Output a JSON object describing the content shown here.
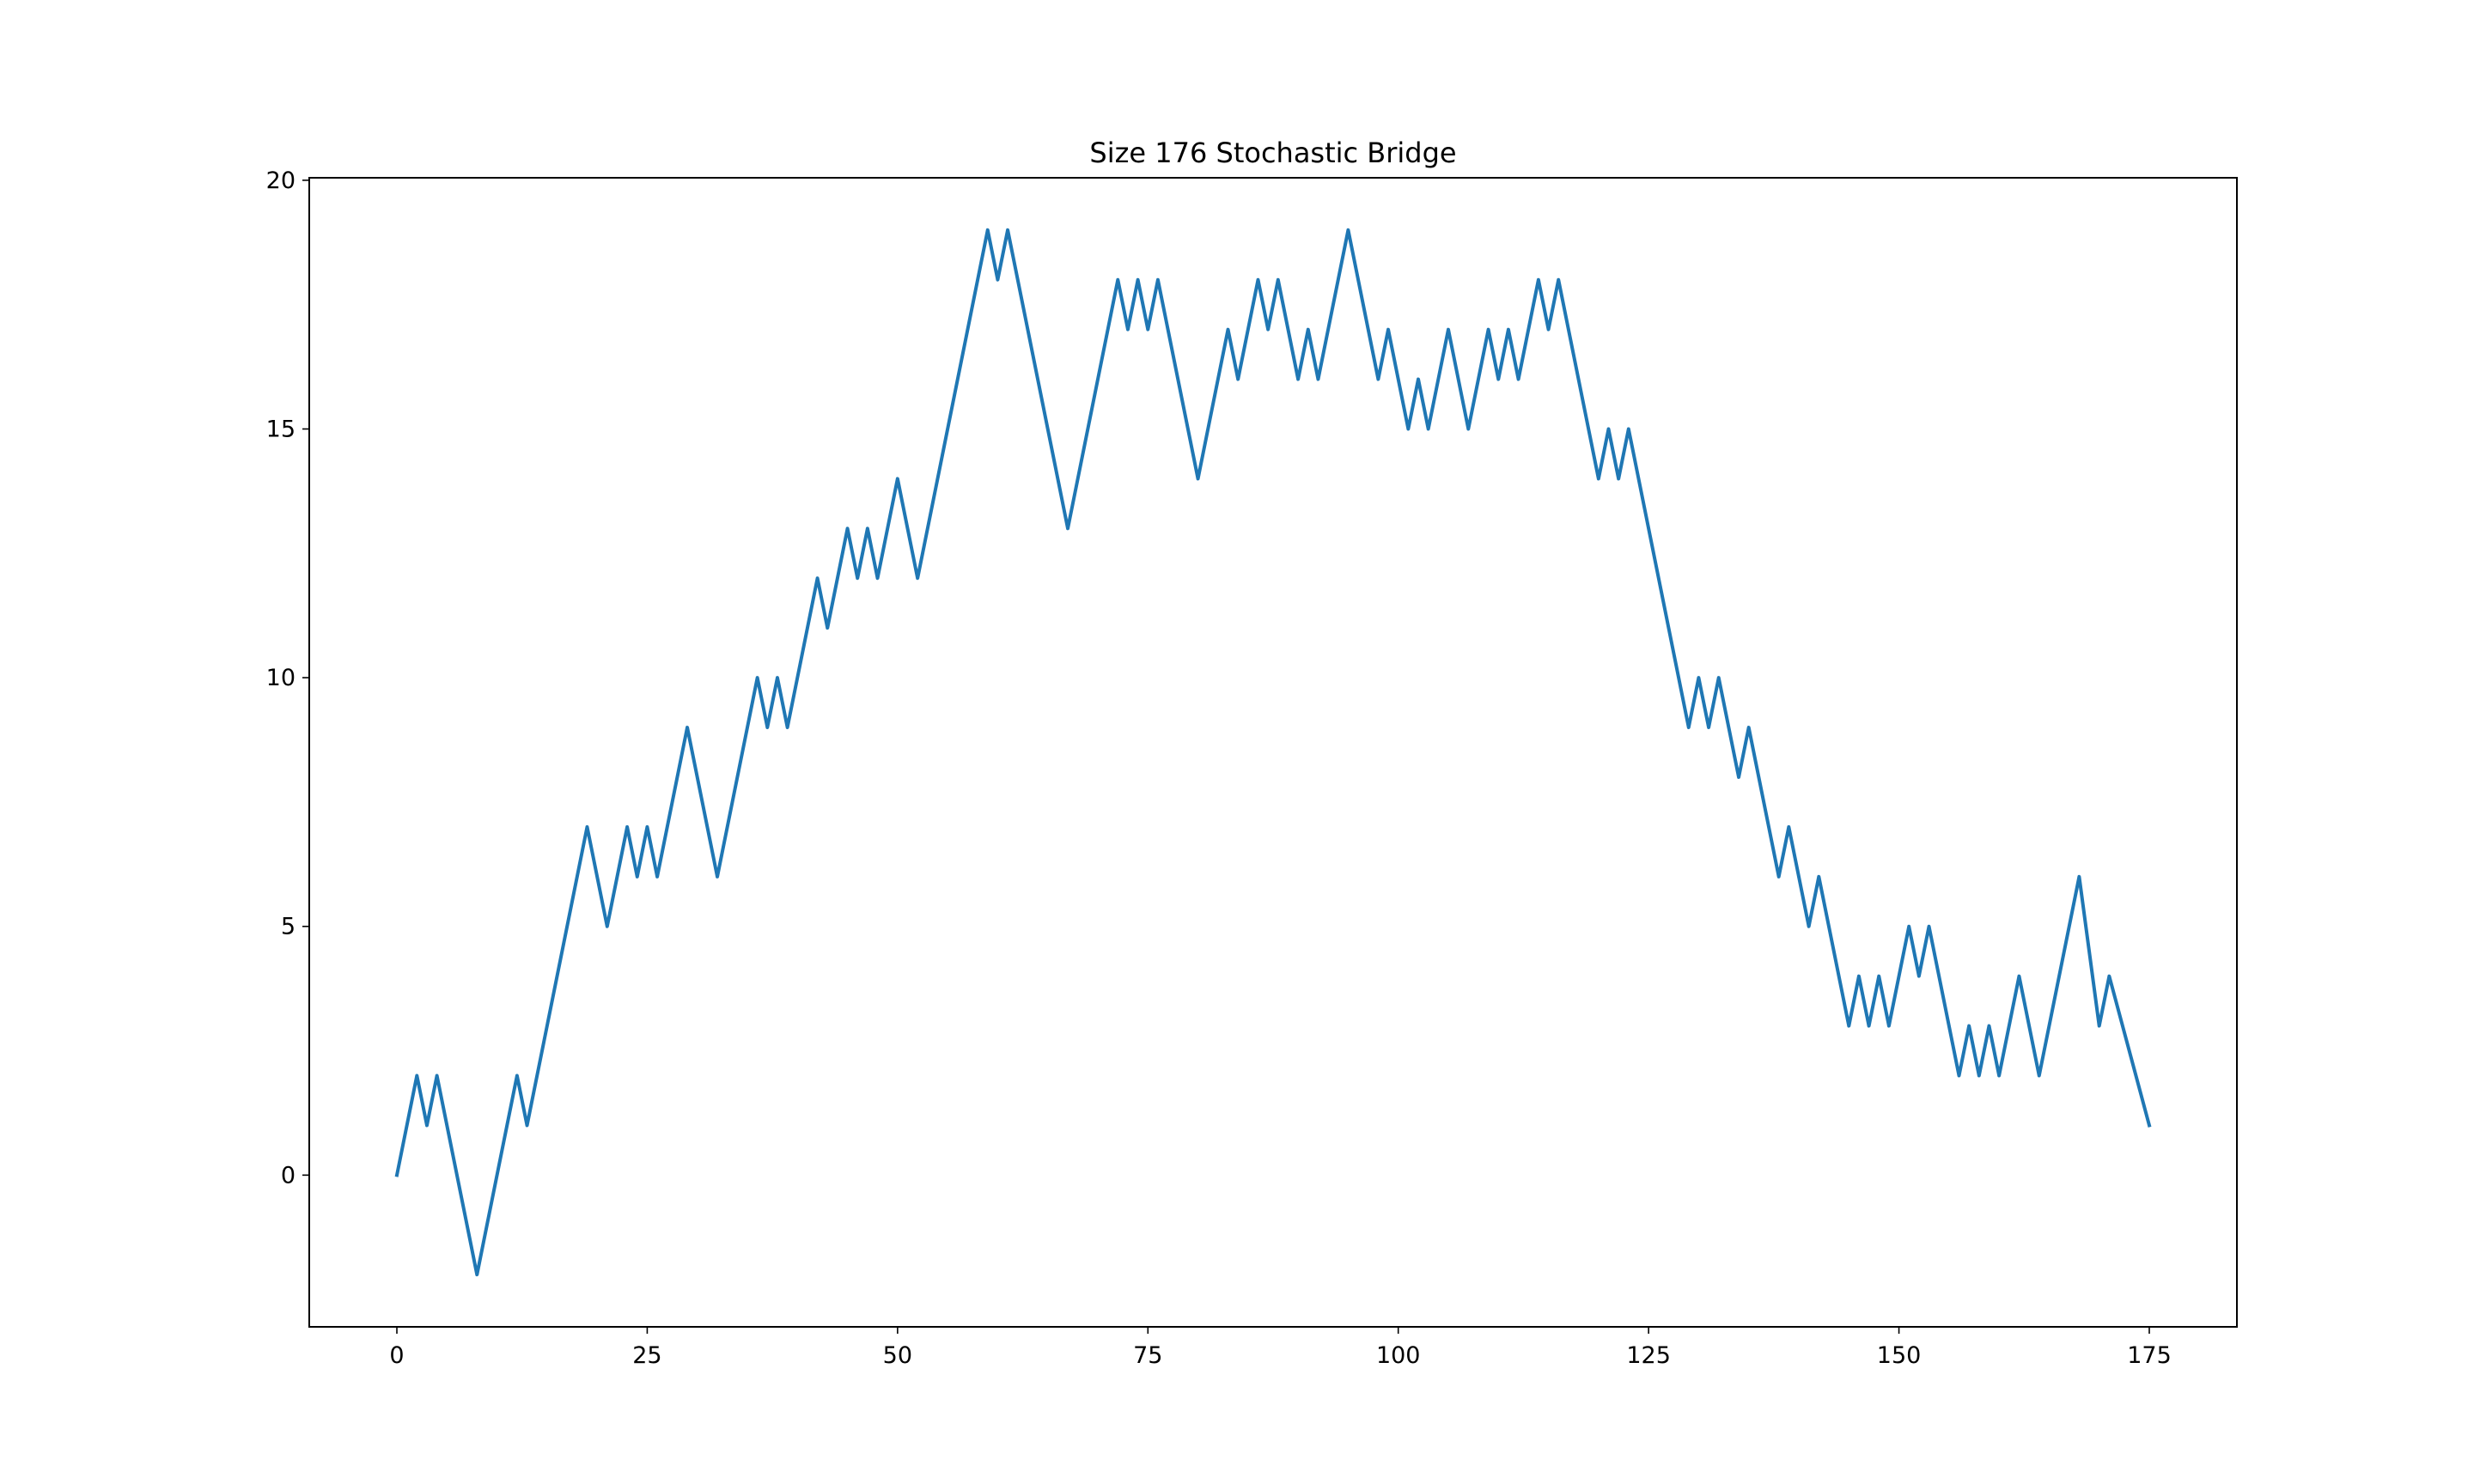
{
  "chart_data": {
    "type": "line",
    "title": "Size 176 Stochastic Bridge",
    "xlabel": "",
    "ylabel": "",
    "xlim": [
      -8.75,
      183.75
    ],
    "ylim": [
      -3.05,
      20.05
    ],
    "xticks": [
      0,
      25,
      50,
      75,
      100,
      125,
      150,
      175
    ],
    "yticks": [
      0,
      5,
      10,
      15,
      20
    ],
    "grid": false,
    "line_color": "#1f77b4",
    "series": [
      {
        "x": [
          0,
          2,
          3,
          4,
          8,
          12,
          13,
          19,
          21,
          23,
          24,
          25,
          26,
          29,
          32,
          36,
          37,
          38,
          39,
          42,
          43,
          45,
          46,
          47,
          48,
          50,
          52,
          59,
          60,
          61,
          67,
          72,
          73,
          74,
          75,
          76,
          80,
          83,
          84,
          86,
          87,
          88,
          90,
          91,
          92,
          95,
          98,
          99,
          101,
          102,
          103,
          105,
          107,
          109,
          110,
          111,
          112,
          114,
          115,
          116,
          120,
          121,
          122,
          123,
          129,
          130,
          131,
          132,
          134,
          135,
          138,
          139,
          141,
          142,
          145,
          146,
          147,
          148,
          149,
          151,
          152,
          153,
          156,
          157,
          158,
          159,
          160,
          162,
          164,
          168,
          170,
          171,
          175
        ],
        "y": [
          0,
          2,
          1,
          2,
          -2,
          2,
          1,
          7,
          5,
          7,
          6,
          7,
          6,
          9,
          6,
          10,
          9,
          10,
          9,
          12,
          11,
          13,
          12,
          13,
          12,
          14,
          12,
          19,
          18,
          19,
          13,
          18,
          17,
          18,
          17,
          18,
          14,
          17,
          16,
          18,
          17,
          18,
          16,
          17,
          16,
          19,
          16,
          17,
          15,
          16,
          15,
          17,
          15,
          17,
          16,
          17,
          16,
          18,
          17,
          18,
          14,
          15,
          14,
          15,
          9,
          10,
          9,
          10,
          8,
          9,
          6,
          7,
          5,
          6,
          3,
          4,
          3,
          4,
          3,
          5,
          4,
          5,
          2,
          3,
          2,
          3,
          2,
          4,
          2,
          6,
          3,
          4,
          1
        ]
      }
    ]
  }
}
